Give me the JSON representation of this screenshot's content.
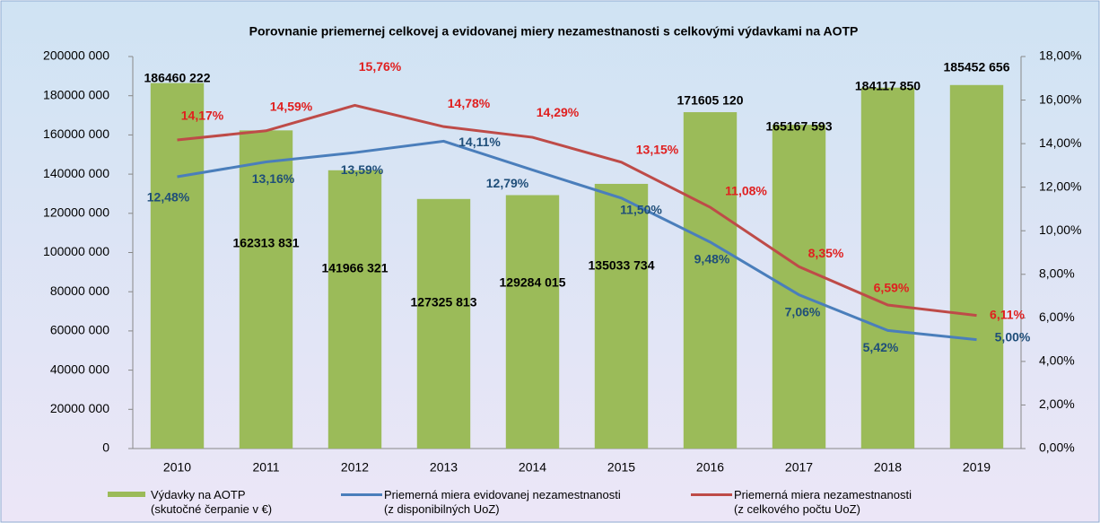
{
  "chart_data": {
    "type": "bar_line",
    "title": "Porovnanie priemernej celkovej a evidovanej miery nezamestnanosti  s celkovými výdavkami na AOTP",
    "categories": [
      "2010",
      "2011",
      "2012",
      "2013",
      "2014",
      "2015",
      "2016",
      "2017",
      "2018",
      "2019"
    ],
    "ylim": [
      0,
      200000000
    ],
    "yticks": [
      0,
      {
        "value": 20000000,
        "label": "20000 000"
      },
      {
        "value": 40000000,
        "label": "40000 000"
      },
      {
        "value": 60000000,
        "label": "60000 000"
      },
      {
        "value": 80000000,
        "label": "80000 000"
      },
      {
        "value": 100000000,
        "label": "100000 000"
      },
      {
        "value": 120000000,
        "label": "120000 000"
      },
      {
        "value": 140000000,
        "label": "140000 000"
      },
      {
        "value": 160000000,
        "label": "160000 000"
      },
      {
        "value": 180000000,
        "label": "180000 000"
      },
      {
        "value": 200000000,
        "label": "200000 000"
      }
    ],
    "y2lim": [
      0,
      18
    ],
    "y2ticks": [
      {
        "value": 0,
        "label": "0,00%"
      },
      {
        "value": 2,
        "label": "2,00%"
      },
      {
        "value": 4,
        "label": "4,00%"
      },
      {
        "value": 6,
        "label": "6,00%"
      },
      {
        "value": 8,
        "label": "8,00%"
      },
      {
        "value": 10,
        "label": "10,00%"
      },
      {
        "value": 12,
        "label": "12,00%"
      },
      {
        "value": 14,
        "label": "14,00%"
      },
      {
        "value": 16,
        "label": "16,00%"
      },
      {
        "value": 18,
        "label": "18,00%"
      }
    ],
    "series": [
      {
        "name": "Výdavky na AOTP\n(skutočné čerpanie v €)",
        "type": "bar",
        "color": "#9bbb59",
        "values": [
          186460222,
          162313831,
          141966321,
          127325813,
          129284015,
          135033734,
          171605120,
          165167593,
          184117850,
          185452656
        ],
        "value_labels": [
          "186460 222",
          "162313 831",
          "141966 321",
          "127325 813",
          "129284 015",
          "135033 734",
          "171605 120",
          "165167 593",
          "184117 850",
          "185452 656"
        ]
      },
      {
        "name": "Priemerná miera evidovanej nezamestnanosti\n(z disponibilných UoZ)",
        "type": "line",
        "axis": "y2",
        "color": "#4a7ebb",
        "values": [
          12.48,
          13.16,
          13.59,
          14.11,
          12.79,
          11.5,
          9.48,
          7.06,
          5.42,
          5.0
        ],
        "value_labels": [
          "12,48%",
          "13,16%",
          "13,59%",
          "14,11%",
          "12,79%",
          "11,50%",
          "9,48%",
          "7,06%",
          "5,42%",
          "5,00%"
        ]
      },
      {
        "name": "Priemerná miera nezamestnanosti\n(z celkového počtu UoZ)",
        "type": "line",
        "axis": "y2",
        "color": "#be4b48",
        "values": [
          14.17,
          14.59,
          15.76,
          14.78,
          14.29,
          13.15,
          11.08,
          8.35,
          6.59,
          6.11
        ],
        "value_labels": [
          "14,17%",
          "14,59%",
          "15,76%",
          "14,78%",
          "14,29%",
          "13,15%",
          "11,08%",
          "8,35%",
          "6,59%",
          "6,11%"
        ]
      }
    ]
  }
}
